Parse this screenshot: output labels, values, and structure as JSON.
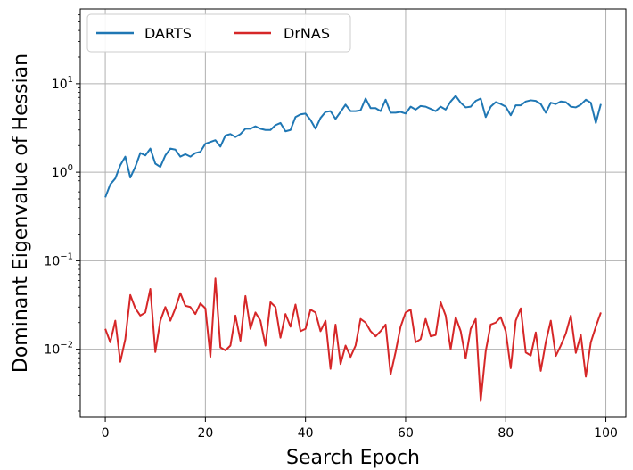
{
  "chart_data": {
    "type": "line",
    "xlabel": "Search Epoch",
    "ylabel": "Dominant Eigenvalue of Hessian",
    "yscale": "log",
    "xlim": [
      -5,
      104
    ],
    "ylim": [
      0.0017,
      70
    ],
    "xticks": [
      0,
      20,
      40,
      60,
      80,
      100
    ],
    "xtick_labels": [
      "0",
      "20",
      "40",
      "60",
      "80",
      "100"
    ],
    "yticks": [
      10,
      1,
      0.1,
      0.01
    ],
    "ytick_labels": [
      {
        "base": "10",
        "exp": "1"
      },
      {
        "base": "10",
        "exp": "0"
      },
      {
        "base": "10",
        "exp": "−1"
      },
      {
        "base": "10",
        "exp": "−2"
      }
    ],
    "grid": true,
    "legend_position": "top-left",
    "x": [
      0,
      1,
      2,
      3,
      4,
      5,
      6,
      7,
      8,
      9,
      10,
      11,
      12,
      13,
      14,
      15,
      16,
      17,
      18,
      19,
      20,
      21,
      22,
      23,
      24,
      25,
      26,
      27,
      28,
      29,
      30,
      31,
      32,
      33,
      34,
      35,
      36,
      37,
      38,
      39,
      40,
      41,
      42,
      43,
      44,
      45,
      46,
      47,
      48,
      49,
      50,
      51,
      52,
      53,
      54,
      55,
      56,
      57,
      58,
      59,
      60,
      61,
      62,
      63,
      64,
      65,
      66,
      67,
      68,
      69,
      70,
      71,
      72,
      73,
      74,
      75,
      76,
      77,
      78,
      79,
      80,
      81,
      82,
      83,
      84,
      85,
      86,
      87,
      88,
      89,
      90,
      91,
      92,
      93,
      94,
      95,
      96,
      97,
      98,
      99
    ],
    "series": [
      {
        "name": "DARTS",
        "color": "#1f77b4",
        "values": [
          0.52,
          0.73,
          0.85,
          1.2,
          1.5,
          0.87,
          1.15,
          1.65,
          1.55,
          1.85,
          1.25,
          1.15,
          1.55,
          1.85,
          1.8,
          1.5,
          1.6,
          1.5,
          1.65,
          1.7,
          2.1,
          2.2,
          2.3,
          1.95,
          2.6,
          2.7,
          2.5,
          2.7,
          3.1,
          3.1,
          3.3,
          3.1,
          3.0,
          3.0,
          3.4,
          3.6,
          2.9,
          3.0,
          4.2,
          4.5,
          4.6,
          3.9,
          3.1,
          4.1,
          4.8,
          4.9,
          4.0,
          4.8,
          5.8,
          4.9,
          4.9,
          5.0,
          6.8,
          5.3,
          5.3,
          4.9,
          6.6,
          4.7,
          4.7,
          4.8,
          4.6,
          5.5,
          5.1,
          5.6,
          5.5,
          5.2,
          4.9,
          5.5,
          5.1,
          6.3,
          7.3,
          6.1,
          5.4,
          5.5,
          6.4,
          6.8,
          4.2,
          5.5,
          6.2,
          5.9,
          5.5,
          4.4,
          5.7,
          5.7,
          6.3,
          6.5,
          6.4,
          5.9,
          4.7,
          6.1,
          5.9,
          6.3,
          6.2,
          5.5,
          5.4,
          5.8,
          6.6,
          6.1,
          3.6,
          5.9
        ]
      },
      {
        "name": "DrNAS",
        "color": "#d62728",
        "values": [
          0.017,
          0.012,
          0.021,
          0.0072,
          0.013,
          0.041,
          0.029,
          0.024,
          0.026,
          0.048,
          0.0093,
          0.021,
          0.03,
          0.021,
          0.029,
          0.043,
          0.031,
          0.03,
          0.025,
          0.033,
          0.029,
          0.0082,
          0.063,
          0.0105,
          0.0097,
          0.011,
          0.024,
          0.0125,
          0.04,
          0.017,
          0.026,
          0.021,
          0.011,
          0.034,
          0.03,
          0.0135,
          0.025,
          0.018,
          0.032,
          0.016,
          0.017,
          0.028,
          0.026,
          0.016,
          0.021,
          0.006,
          0.019,
          0.0068,
          0.011,
          0.0082,
          0.011,
          0.022,
          0.02,
          0.016,
          0.014,
          0.016,
          0.019,
          0.0052,
          0.0093,
          0.018,
          0.026,
          0.028,
          0.012,
          0.013,
          0.022,
          0.014,
          0.0145,
          0.034,
          0.024,
          0.01,
          0.023,
          0.016,
          0.0079,
          0.017,
          0.022,
          0.0026,
          0.0095,
          0.019,
          0.02,
          0.023,
          0.016,
          0.0061,
          0.021,
          0.029,
          0.0092,
          0.0085,
          0.0155,
          0.0057,
          0.012,
          0.021,
          0.0084,
          0.011,
          0.015,
          0.024,
          0.0091,
          0.0145,
          0.0049,
          0.012,
          0.018,
          0.026
        ]
      }
    ]
  }
}
